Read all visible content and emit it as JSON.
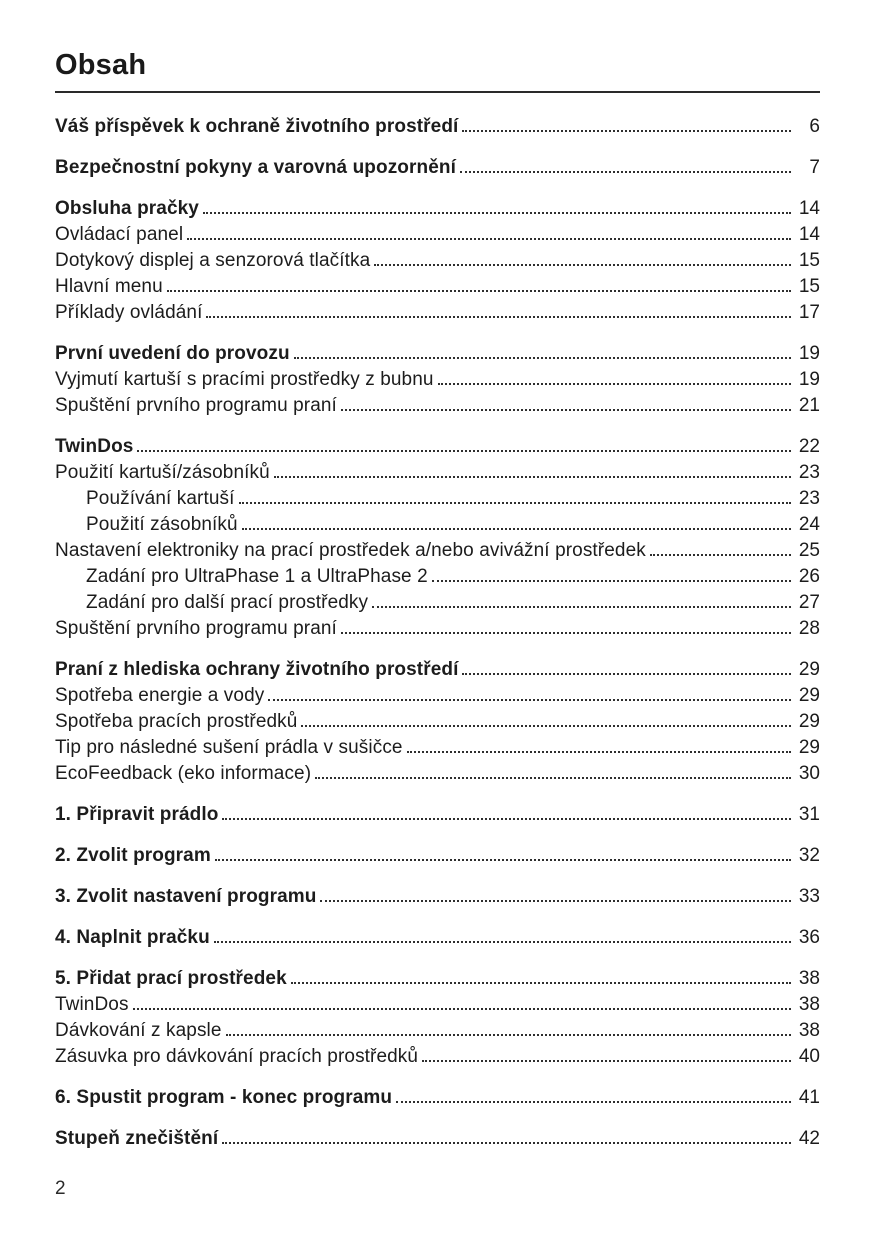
{
  "page": {
    "title": "Obsah",
    "footer_page_number": "2"
  },
  "toc": {
    "entries": [
      {
        "label": "Váš příspěvek k ochraně životního prostředí",
        "page": "6",
        "bold": true,
        "indent": 0,
        "section_start": true
      },
      {
        "label": "Bezpečnostní pokyny a varovná upozornění",
        "page": "7",
        "bold": true,
        "indent": 0,
        "section_start": true
      },
      {
        "label": "Obsluha pračky",
        "page": "14",
        "bold": true,
        "indent": 0,
        "section_start": true
      },
      {
        "label": "Ovládací panel",
        "page": "14",
        "bold": false,
        "indent": 0,
        "section_start": false
      },
      {
        "label": "Dotykový displej a senzorová tlačítka",
        "page": "15",
        "bold": false,
        "indent": 0,
        "section_start": false
      },
      {
        "label": "Hlavní menu",
        "page": "15",
        "bold": false,
        "indent": 0,
        "section_start": false
      },
      {
        "label": "Příklady ovládání",
        "page": "17",
        "bold": false,
        "indent": 0,
        "section_start": false
      },
      {
        "label": "První uvedení do provozu",
        "page": "19",
        "bold": true,
        "indent": 0,
        "section_start": true
      },
      {
        "label": "Vyjmutí kartuší s pracími prostředky z bubnu",
        "page": "19",
        "bold": false,
        "indent": 0,
        "section_start": false
      },
      {
        "label": "Spuštění prvního programu praní",
        "page": "21",
        "bold": false,
        "indent": 0,
        "section_start": false
      },
      {
        "label": "TwinDos",
        "page": "22",
        "bold": true,
        "indent": 0,
        "section_start": true
      },
      {
        "label": "Použití kartuší/zásobníků",
        "page": "23",
        "bold": false,
        "indent": 0,
        "section_start": false
      },
      {
        "label": "Používání kartuší",
        "page": "23",
        "bold": false,
        "indent": 1,
        "section_start": false
      },
      {
        "label": "Použití zásobníků",
        "page": "24",
        "bold": false,
        "indent": 1,
        "section_start": false
      },
      {
        "label": "Nastavení elektroniky na prací prostředek a/nebo avivážní prostředek",
        "page": "25",
        "bold": false,
        "indent": 0,
        "section_start": false
      },
      {
        "label": "Zadání pro UltraPhase 1 a UltraPhase 2",
        "page": "26",
        "bold": false,
        "indent": 1,
        "section_start": false
      },
      {
        "label": "Zadání pro další prací prostředky",
        "page": "27",
        "bold": false,
        "indent": 1,
        "section_start": false
      },
      {
        "label": "Spuštění prvního programu praní",
        "page": "28",
        "bold": false,
        "indent": 0,
        "section_start": false
      },
      {
        "label": "Praní z hlediska ochrany životního prostředí",
        "page": "29",
        "bold": true,
        "indent": 0,
        "section_start": true
      },
      {
        "label": "Spotřeba energie a vody",
        "page": "29",
        "bold": false,
        "indent": 0,
        "section_start": false
      },
      {
        "label": "Spotřeba pracích prostředků",
        "page": "29",
        "bold": false,
        "indent": 0,
        "section_start": false
      },
      {
        "label": "Tip pro následné sušení prádla v sušičce",
        "page": "29",
        "bold": false,
        "indent": 0,
        "section_start": false
      },
      {
        "label": "EcoFeedback (eko informace)",
        "page": "30",
        "bold": false,
        "indent": 0,
        "section_start": false
      },
      {
        "label": "1. Připravit prádlo",
        "page": "31",
        "bold": true,
        "indent": 0,
        "section_start": true
      },
      {
        "label": "2. Zvolit program",
        "page": "32",
        "bold": true,
        "indent": 0,
        "section_start": true
      },
      {
        "label": "3. Zvolit nastavení programu",
        "page": "33",
        "bold": true,
        "indent": 0,
        "section_start": true
      },
      {
        "label": "4. Naplnit pračku",
        "page": "36",
        "bold": true,
        "indent": 0,
        "section_start": true
      },
      {
        "label": "5. Přidat prací prostředek",
        "page": "38",
        "bold": true,
        "indent": 0,
        "section_start": true
      },
      {
        "label": "TwinDos",
        "page": "38",
        "bold": false,
        "indent": 0,
        "section_start": false
      },
      {
        "label": "Dávkování z kapsle",
        "page": "38",
        "bold": false,
        "indent": 0,
        "section_start": false
      },
      {
        "label": "Zásuvka pro dávkování pracích prostředků",
        "page": "40",
        "bold": false,
        "indent": 0,
        "section_start": false
      },
      {
        "label": "6. Spustit program - konec programu",
        "page": "41",
        "bold": true,
        "indent": 0,
        "section_start": true
      },
      {
        "label": "Stupeň znečištění",
        "page": "42",
        "bold": true,
        "indent": 0,
        "section_start": true
      }
    ]
  }
}
